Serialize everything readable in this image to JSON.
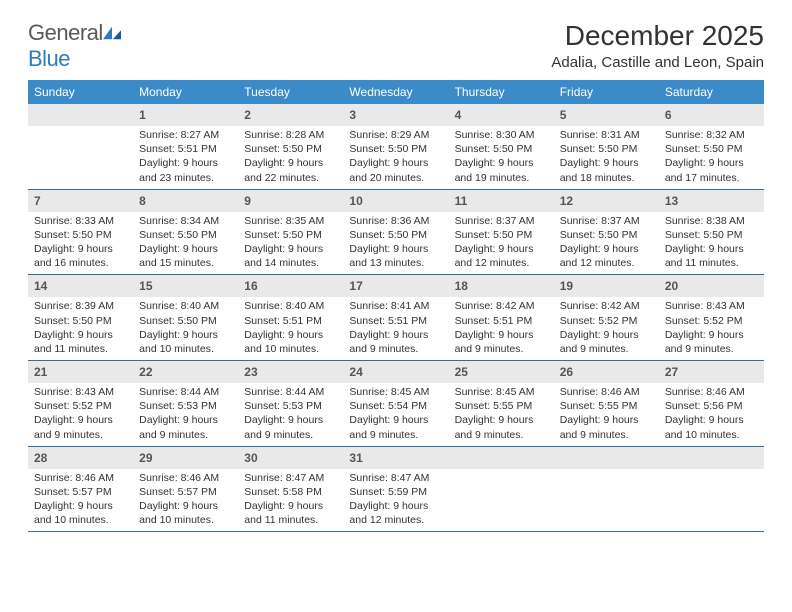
{
  "brand": {
    "part1": "General",
    "part2": "Blue"
  },
  "title": "December 2025",
  "location": "Adalia, Castille and Leon, Spain",
  "colors": {
    "header_bg": "#3b8bc8",
    "header_text": "#ffffff",
    "daynum_bg": "#e9e9e9",
    "daynum_text": "#555555",
    "row_border": "#2e6ea0",
    "body_text": "#333333",
    "logo_gray": "#5a5a5a",
    "logo_blue": "#2e7cc0",
    "page_bg": "#ffffff"
  },
  "fonts": {
    "title_size_pt": 21,
    "location_size_pt": 11,
    "header_size_pt": 9,
    "daynum_size_pt": 9,
    "detail_size_pt": 8,
    "logo_size_pt": 16
  },
  "weekdays": [
    "Sunday",
    "Monday",
    "Tuesday",
    "Wednesday",
    "Thursday",
    "Friday",
    "Saturday"
  ],
  "weeks": [
    [
      null,
      {
        "n": "1",
        "sr": "8:27 AM",
        "ss": "5:51 PM",
        "dl": "9 hours and 23 minutes."
      },
      {
        "n": "2",
        "sr": "8:28 AM",
        "ss": "5:50 PM",
        "dl": "9 hours and 22 minutes."
      },
      {
        "n": "3",
        "sr": "8:29 AM",
        "ss": "5:50 PM",
        "dl": "9 hours and 20 minutes."
      },
      {
        "n": "4",
        "sr": "8:30 AM",
        "ss": "5:50 PM",
        "dl": "9 hours and 19 minutes."
      },
      {
        "n": "5",
        "sr": "8:31 AM",
        "ss": "5:50 PM",
        "dl": "9 hours and 18 minutes."
      },
      {
        "n": "6",
        "sr": "8:32 AM",
        "ss": "5:50 PM",
        "dl": "9 hours and 17 minutes."
      }
    ],
    [
      {
        "n": "7",
        "sr": "8:33 AM",
        "ss": "5:50 PM",
        "dl": "9 hours and 16 minutes."
      },
      {
        "n": "8",
        "sr": "8:34 AM",
        "ss": "5:50 PM",
        "dl": "9 hours and 15 minutes."
      },
      {
        "n": "9",
        "sr": "8:35 AM",
        "ss": "5:50 PM",
        "dl": "9 hours and 14 minutes."
      },
      {
        "n": "10",
        "sr": "8:36 AM",
        "ss": "5:50 PM",
        "dl": "9 hours and 13 minutes."
      },
      {
        "n": "11",
        "sr": "8:37 AM",
        "ss": "5:50 PM",
        "dl": "9 hours and 12 minutes."
      },
      {
        "n": "12",
        "sr": "8:37 AM",
        "ss": "5:50 PM",
        "dl": "9 hours and 12 minutes."
      },
      {
        "n": "13",
        "sr": "8:38 AM",
        "ss": "5:50 PM",
        "dl": "9 hours and 11 minutes."
      }
    ],
    [
      {
        "n": "14",
        "sr": "8:39 AM",
        "ss": "5:50 PM",
        "dl": "9 hours and 11 minutes."
      },
      {
        "n": "15",
        "sr": "8:40 AM",
        "ss": "5:50 PM",
        "dl": "9 hours and 10 minutes."
      },
      {
        "n": "16",
        "sr": "8:40 AM",
        "ss": "5:51 PM",
        "dl": "9 hours and 10 minutes."
      },
      {
        "n": "17",
        "sr": "8:41 AM",
        "ss": "5:51 PM",
        "dl": "9 hours and 9 minutes."
      },
      {
        "n": "18",
        "sr": "8:42 AM",
        "ss": "5:51 PM",
        "dl": "9 hours and 9 minutes."
      },
      {
        "n": "19",
        "sr": "8:42 AM",
        "ss": "5:52 PM",
        "dl": "9 hours and 9 minutes."
      },
      {
        "n": "20",
        "sr": "8:43 AM",
        "ss": "5:52 PM",
        "dl": "9 hours and 9 minutes."
      }
    ],
    [
      {
        "n": "21",
        "sr": "8:43 AM",
        "ss": "5:52 PM",
        "dl": "9 hours and 9 minutes."
      },
      {
        "n": "22",
        "sr": "8:44 AM",
        "ss": "5:53 PM",
        "dl": "9 hours and 9 minutes."
      },
      {
        "n": "23",
        "sr": "8:44 AM",
        "ss": "5:53 PM",
        "dl": "9 hours and 9 minutes."
      },
      {
        "n": "24",
        "sr": "8:45 AM",
        "ss": "5:54 PM",
        "dl": "9 hours and 9 minutes."
      },
      {
        "n": "25",
        "sr": "8:45 AM",
        "ss": "5:55 PM",
        "dl": "9 hours and 9 minutes."
      },
      {
        "n": "26",
        "sr": "8:46 AM",
        "ss": "5:55 PM",
        "dl": "9 hours and 9 minutes."
      },
      {
        "n": "27",
        "sr": "8:46 AM",
        "ss": "5:56 PM",
        "dl": "9 hours and 10 minutes."
      }
    ],
    [
      {
        "n": "28",
        "sr": "8:46 AM",
        "ss": "5:57 PM",
        "dl": "9 hours and 10 minutes."
      },
      {
        "n": "29",
        "sr": "8:46 AM",
        "ss": "5:57 PM",
        "dl": "9 hours and 10 minutes."
      },
      {
        "n": "30",
        "sr": "8:47 AM",
        "ss": "5:58 PM",
        "dl": "9 hours and 11 minutes."
      },
      {
        "n": "31",
        "sr": "8:47 AM",
        "ss": "5:59 PM",
        "dl": "9 hours and 12 minutes."
      },
      null,
      null,
      null
    ]
  ],
  "labels": {
    "sunrise": "Sunrise:",
    "sunset": "Sunset:",
    "daylight": "Daylight:"
  }
}
